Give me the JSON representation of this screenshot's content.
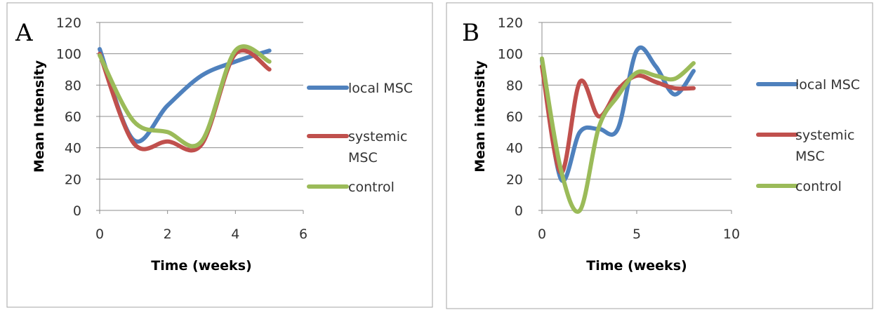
{
  "chart_data": [
    {
      "type": "line",
      "panel_label": "A",
      "title": "",
      "xlabel": "Time (weeks)",
      "ylabel": "Mean Intensity",
      "xlim": [
        0,
        6
      ],
      "ylim": [
        0,
        120
      ],
      "xticks": [
        0,
        2,
        4,
        6
      ],
      "yticks": [
        0,
        20,
        40,
        60,
        80,
        100,
        120
      ],
      "grid": "horizontal",
      "legend_position": "right",
      "series": [
        {
          "name": "local MSC",
          "color": "#4f81bd",
          "x": [
            0,
            1,
            2,
            3,
            4,
            5
          ],
          "y": [
            103,
            45,
            67,
            86,
            95,
            102
          ]
        },
        {
          "name": "systemic MSC",
          "color": "#c0504d",
          "x": [
            0,
            1,
            2,
            3,
            4,
            5
          ],
          "y": [
            100,
            43,
            44,
            42,
            100,
            90
          ]
        },
        {
          "name": "control",
          "color": "#9bbb59",
          "x": [
            0,
            1,
            2,
            3,
            4,
            5
          ],
          "y": [
            99,
            57,
            50,
            44,
            102,
            95
          ]
        }
      ]
    },
    {
      "type": "line",
      "panel_label": "B",
      "title": "",
      "xlabel": "Time (weeks)",
      "ylabel": "Mean intensity",
      "xlim": [
        0,
        10
      ],
      "ylim": [
        0,
        120
      ],
      "xticks": [
        0,
        5,
        10
      ],
      "yticks": [
        0,
        20,
        40,
        60,
        80,
        100,
        120
      ],
      "grid": "horizontal",
      "legend_position": "right",
      "series": [
        {
          "name": "local MSC",
          "color": "#4f81bd",
          "x": [
            0,
            1,
            2,
            3,
            4,
            5,
            6,
            7,
            8
          ],
          "y": [
            96,
            20,
            50,
            52,
            52,
            102,
            92,
            74,
            89
          ]
        },
        {
          "name": "systemic MSC",
          "color": "#c0504d",
          "x": [
            0,
            1,
            2,
            3,
            4,
            5,
            6,
            7,
            8
          ],
          "y": [
            92,
            24,
            82,
            60,
            77,
            86,
            82,
            78,
            78
          ]
        },
        {
          "name": "control",
          "color": "#9bbb59",
          "x": [
            0,
            1,
            2,
            3,
            4,
            5,
            6,
            7,
            8
          ],
          "y": [
            97,
            26,
            0,
            53,
            73,
            88,
            86,
            84,
            94
          ]
        }
      ]
    }
  ]
}
